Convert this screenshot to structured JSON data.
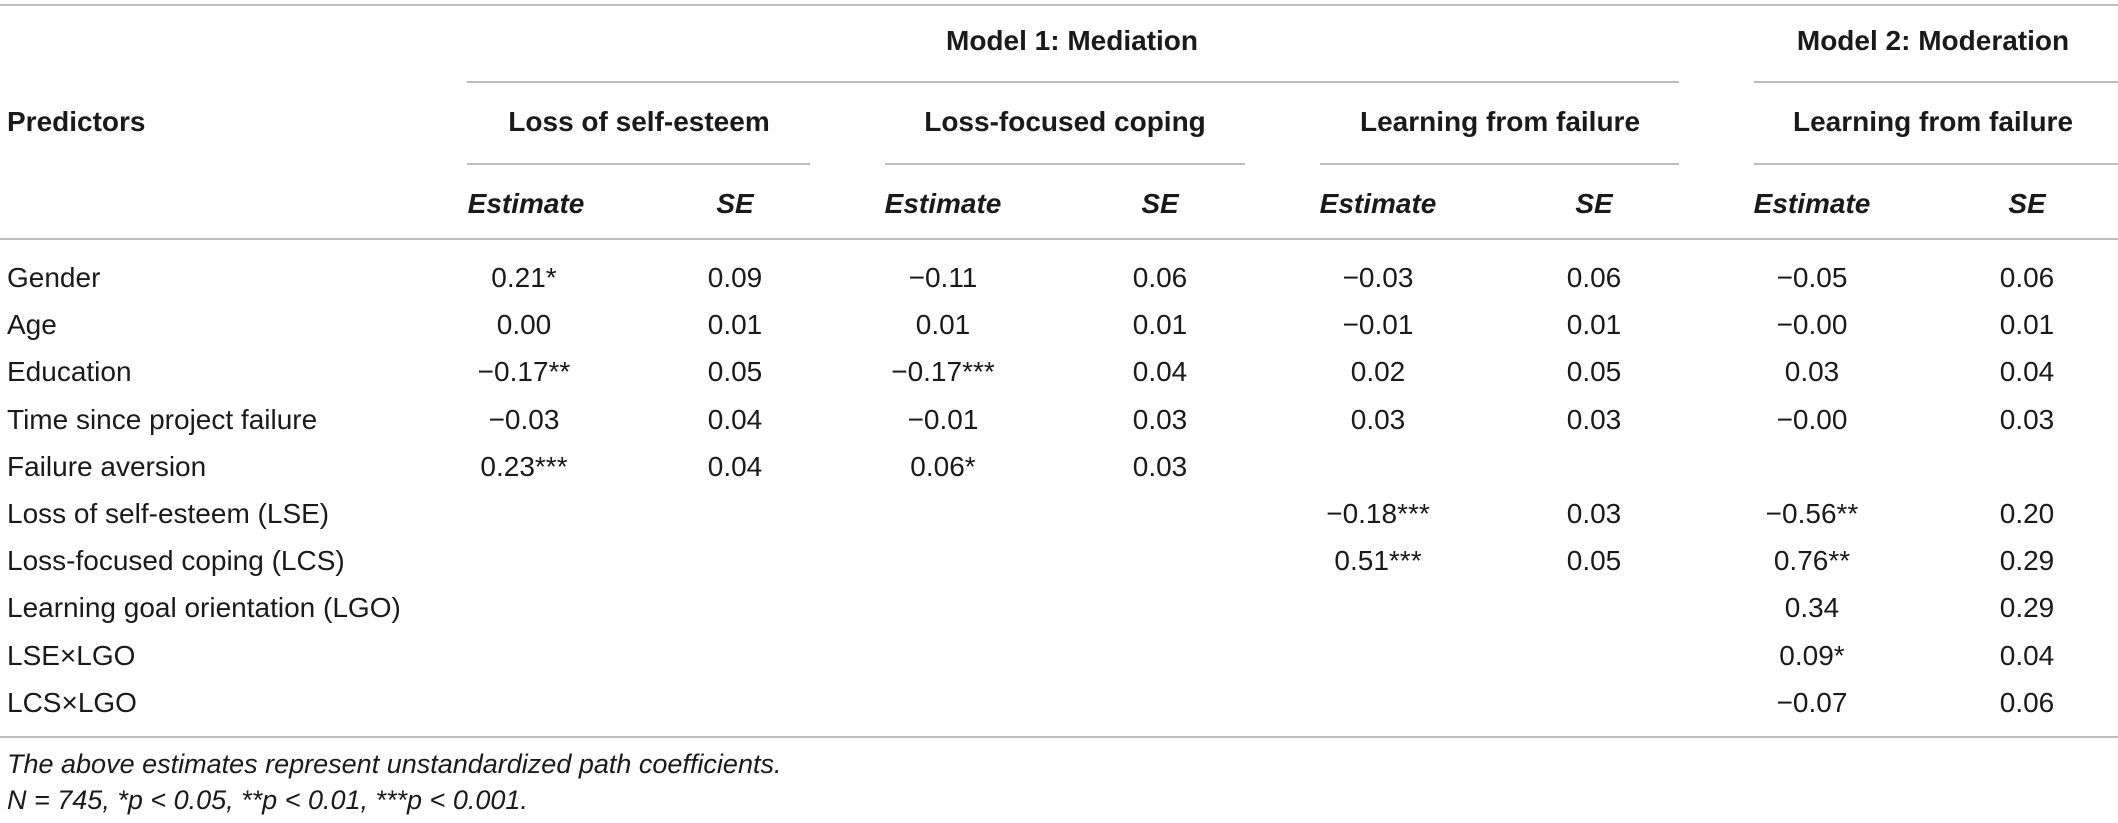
{
  "table": {
    "predictors_header": "Predictors",
    "model1_title": "Model 1: Mediation",
    "model2_title": "Model 2: Moderation",
    "groups": [
      "Loss of self-esteem",
      "Loss-focused coping",
      "Learning from failure",
      "Learning from failure"
    ],
    "subheaders": [
      {
        "est": "Estimate",
        "se": "SE"
      },
      {
        "est": "Estimate",
        "se": "SE"
      },
      {
        "est": "Estimate",
        "se": "SE"
      },
      {
        "est": "Estimate",
        "se": "SE"
      }
    ],
    "rows": [
      {
        "label": "Gender",
        "vals": [
          "0.21*",
          "0.09",
          "−0.11",
          "0.06",
          "−0.03",
          "0.06",
          "−0.05",
          "0.06"
        ]
      },
      {
        "label": "Age",
        "vals": [
          "0.00",
          "0.01",
          "0.01",
          "0.01",
          "−0.01",
          "0.01",
          "−0.00",
          "0.01"
        ]
      },
      {
        "label": "Education",
        "vals": [
          "−0.17**",
          "0.05",
          "−0.17***",
          "0.04",
          "0.02",
          "0.05",
          "0.03",
          "0.04"
        ]
      },
      {
        "label": "Time since project failure",
        "vals": [
          "−0.03",
          "0.04",
          "−0.01",
          "0.03",
          "0.03",
          "0.03",
          "−0.00",
          "0.03"
        ]
      },
      {
        "label": "Failure aversion",
        "vals": [
          "0.23***",
          "0.04",
          "0.06*",
          "0.03",
          "",
          "",
          "",
          ""
        ]
      },
      {
        "label": "Loss of self-esteem (LSE)",
        "vals": [
          "",
          "",
          "",
          "",
          "−0.18***",
          "0.03",
          "−0.56**",
          "0.20"
        ]
      },
      {
        "label": "Loss-focused coping (LCS)",
        "vals": [
          "",
          "",
          "",
          "",
          "0.51***",
          "0.05",
          "0.76**",
          "0.29"
        ]
      },
      {
        "label": "Learning goal orientation (LGO)",
        "vals": [
          "",
          "",
          "",
          "",
          "",
          "",
          "0.34",
          "0.29"
        ]
      },
      {
        "label": "LSE×LGO",
        "vals": [
          "",
          "",
          "",
          "",
          "",
          "",
          "0.09*",
          "0.04"
        ]
      },
      {
        "label": "LCS×LGO",
        "vals": [
          "",
          "",
          "",
          "",
          "",
          "",
          "−0.07",
          "0.06"
        ]
      }
    ],
    "footnotes": [
      "The above estimates represent unstandardized path coefficients.",
      "N = 745, *p < 0.05, **p < 0.01, ***p < 0.001."
    ]
  }
}
